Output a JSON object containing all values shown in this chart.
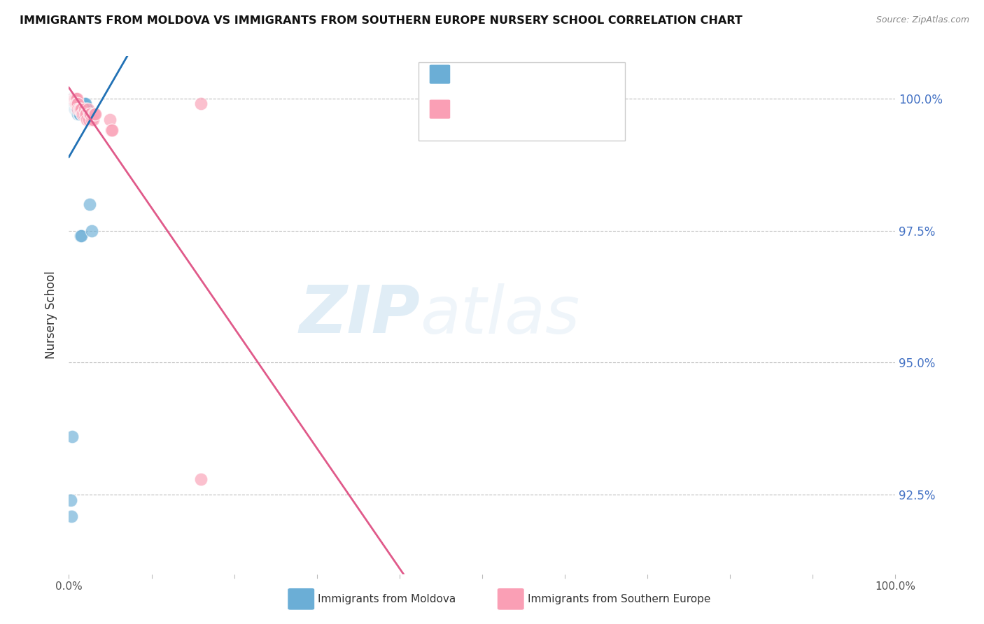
{
  "title": "IMMIGRANTS FROM MOLDOVA VS IMMIGRANTS FROM SOUTHERN EUROPE NURSERY SCHOOL CORRELATION CHART",
  "source": "Source: ZipAtlas.com",
  "ylabel": "Nursery School",
  "x_min": 0.0,
  "x_max": 100.0,
  "y_min": 91.0,
  "y_max": 100.8,
  "y_tick_values": [
    92.5,
    95.0,
    97.5,
    100.0
  ],
  "y_tick_labels": [
    "92.5%",
    "95.0%",
    "97.5%",
    "100.0%"
  ],
  "x_tick_positions": [
    0,
    10,
    20,
    30,
    40,
    50,
    60,
    70,
    80,
    90,
    100
  ],
  "legend_label1": "Immigrants from Moldova",
  "legend_label2": "Immigrants from Southern Europe",
  "blue_color": "#6baed6",
  "pink_color": "#fa9fb5",
  "blue_line_color": "#2171b5",
  "pink_line_color": "#e05a8a",
  "watermark_zip": "ZIP",
  "watermark_atlas": "atlas",
  "blue_x": [
    0.2,
    0.3,
    0.3,
    0.4,
    0.4,
    0.4,
    0.5,
    0.5,
    0.5,
    0.6,
    0.6,
    0.6,
    0.7,
    0.7,
    0.7,
    0.7,
    0.8,
    0.8,
    0.8,
    0.8,
    0.9,
    0.9,
    1.0,
    1.0,
    1.0,
    1.1,
    1.1,
    1.2,
    1.2,
    1.3,
    1.4,
    1.5,
    1.7,
    1.8,
    1.9,
    2.0,
    2.1,
    2.2,
    2.5,
    2.8,
    0.2,
    0.3,
    0.4
  ],
  "blue_y": [
    100.0,
    100.0,
    100.0,
    100.0,
    100.0,
    100.0,
    100.0,
    100.0,
    100.0,
    100.0,
    99.9,
    99.9,
    99.9,
    99.9,
    99.9,
    99.8,
    99.9,
    99.9,
    99.8,
    99.8,
    99.8,
    99.8,
    99.8,
    99.8,
    99.8,
    99.8,
    99.7,
    99.7,
    99.7,
    99.7,
    97.4,
    97.4,
    99.9,
    99.9,
    99.9,
    99.9,
    99.8,
    99.8,
    98.0,
    97.5,
    92.4,
    92.1,
    93.6
  ],
  "pink_x": [
    0.5,
    0.6,
    0.6,
    0.7,
    0.7,
    0.8,
    0.8,
    0.9,
    0.9,
    1.0,
    1.0,
    1.1,
    1.1,
    1.2,
    1.3,
    1.4,
    1.5,
    1.6,
    1.7,
    1.8,
    1.9,
    2.0,
    2.1,
    2.2,
    2.3,
    2.4,
    2.5,
    2.6,
    2.8,
    2.9,
    3.0,
    3.1,
    3.2,
    5.0,
    5.1,
    5.2,
    16.0,
    16.0
  ],
  "pink_y": [
    100.0,
    100.0,
    100.0,
    100.0,
    100.0,
    100.0,
    99.9,
    100.0,
    99.9,
    100.0,
    99.9,
    99.9,
    99.8,
    99.8,
    99.8,
    99.8,
    99.8,
    99.7,
    99.7,
    99.7,
    99.8,
    99.7,
    99.7,
    99.6,
    99.8,
    99.6,
    99.7,
    99.7,
    99.6,
    99.6,
    99.7,
    99.7,
    99.7,
    99.6,
    99.4,
    99.4,
    99.9,
    92.8
  ],
  "blue_line_x0": 0.0,
  "blue_line_x1": 100.0,
  "pink_line_x0": 0.0,
  "pink_line_x1": 100.0
}
